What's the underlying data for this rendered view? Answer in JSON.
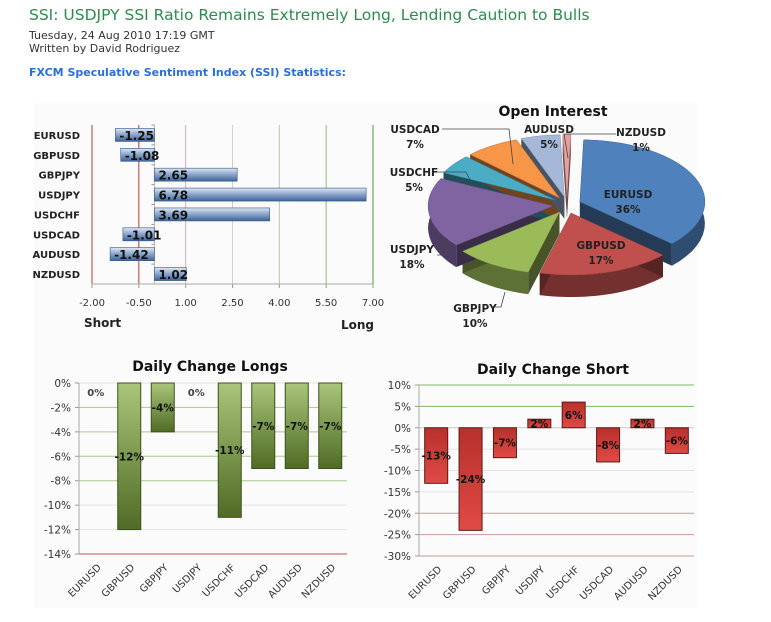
{
  "article": {
    "title": "SSI: USDJPY SSI Ratio Remains Extremely Long, Lending Caution to Bulls",
    "date": "Tuesday, 24 Aug 2010 17:19 GMT",
    "author": "Written by David Rodriguez",
    "section_heading": "FXCM Speculative Sentiment Index (SSI) Statistics:"
  },
  "colors": {
    "title": "#2e8b4e",
    "section": "#2a6fd6",
    "ssi_bar": "#4f74a8",
    "longs_bar": "#6b8e3a",
    "short_bar": "#c8403c"
  },
  "chart_data": [
    {
      "type": "bar",
      "orientation": "horizontal",
      "title": "",
      "categories": [
        "EURUSD",
        "GBPUSD",
        "GBPJPY",
        "USDJPY",
        "USDCHF",
        "USDCAD",
        "AUDUSD",
        "NZDUSD"
      ],
      "values": [
        -1.25,
        -1.08,
        2.65,
        6.78,
        3.69,
        -1.01,
        -1.42,
        1.02
      ],
      "data_labels": [
        "-1.25",
        "-1.08",
        "2.65",
        "6.78",
        "3.69",
        "-1.01",
        "-1.42",
        "1.02"
      ],
      "xlim": [
        -2.0,
        7.0
      ],
      "xticks": [
        "-2.00",
        "-0.50",
        "1.00",
        "2.50",
        "4.00",
        "5.50",
        "7.00"
      ],
      "xtick_values": [
        -2.0,
        -0.5,
        1.0,
        2.5,
        4.0,
        5.5,
        7.0
      ],
      "xlabel_left": "Short",
      "xlabel_right": "Long",
      "grid": true
    },
    {
      "type": "pie",
      "title": "Open Interest",
      "style": "3d-exploded",
      "slices": [
        {
          "label": "EURUSD",
          "value": 36,
          "text": "36%",
          "color": "#4f81bd"
        },
        {
          "label": "GBPUSD",
          "value": 17,
          "text": "17%",
          "color": "#c0504d"
        },
        {
          "label": "GBPJPY",
          "value": 10,
          "text": "10%",
          "color": "#9bbb59"
        },
        {
          "label": "USDJPY",
          "value": 18,
          "text": "18%",
          "color": "#8064a2"
        },
        {
          "label": "USDCHF",
          "value": 5,
          "text": "5%",
          "color": "#4bacc6"
        },
        {
          "label": "USDCAD",
          "value": 7,
          "text": "7%",
          "color": "#f79646"
        },
        {
          "label": "AUDUSD",
          "value": 5,
          "text": "5%",
          "color": "#a5b8d8"
        },
        {
          "label": "NZDUSD",
          "value": 1,
          "text": "1%",
          "color": "#e6a0a0"
        }
      ]
    },
    {
      "type": "bar",
      "title": "Daily Change Longs",
      "categories": [
        "EURUSD",
        "GBPUSD",
        "GBPJPY",
        "USDJPY",
        "USDCHF",
        "USDCAD",
        "AUDUSD",
        "NZDUSD"
      ],
      "values": [
        0,
        -12,
        -4,
        0,
        -11,
        -7,
        -7,
        -7
      ],
      "data_labels": [
        "0%",
        "-12%",
        "-4%",
        "0%",
        "-11%",
        "-7%",
        "-7%",
        "-7%"
      ],
      "ylim": [
        -14,
        0
      ],
      "yticks": [
        "0%",
        "-2%",
        "-4%",
        "-6%",
        "-8%",
        "-10%",
        "-12%",
        "-14%"
      ],
      "ytick_values": [
        0,
        -2,
        -4,
        -6,
        -8,
        -10,
        -12,
        -14
      ],
      "ylabel": "",
      "xlabel": "",
      "grid": true
    },
    {
      "type": "bar",
      "title": "Daily Change Short",
      "categories": [
        "EURUSD",
        "GBPUSD",
        "GBPJPY",
        "USDJPY",
        "USDCHF",
        "USDCAD",
        "AUDUSD",
        "NZDUSD"
      ],
      "values": [
        -13,
        -24,
        -7,
        2,
        6,
        -8,
        2,
        -6
      ],
      "data_labels": [
        "-13%",
        "-24%",
        "-7%",
        "2%",
        "6%",
        "-8%",
        "2%",
        "-6%"
      ],
      "ylim": [
        -30,
        10
      ],
      "yticks": [
        "10%",
        "5%",
        "0%",
        "-5%",
        "-10%",
        "-15%",
        "-20%",
        "-25%",
        "-30%"
      ],
      "ytick_values": [
        10,
        5,
        0,
        -5,
        -10,
        -15,
        -20,
        -25,
        -30
      ],
      "ylabel": "",
      "xlabel": "",
      "grid": true
    }
  ]
}
